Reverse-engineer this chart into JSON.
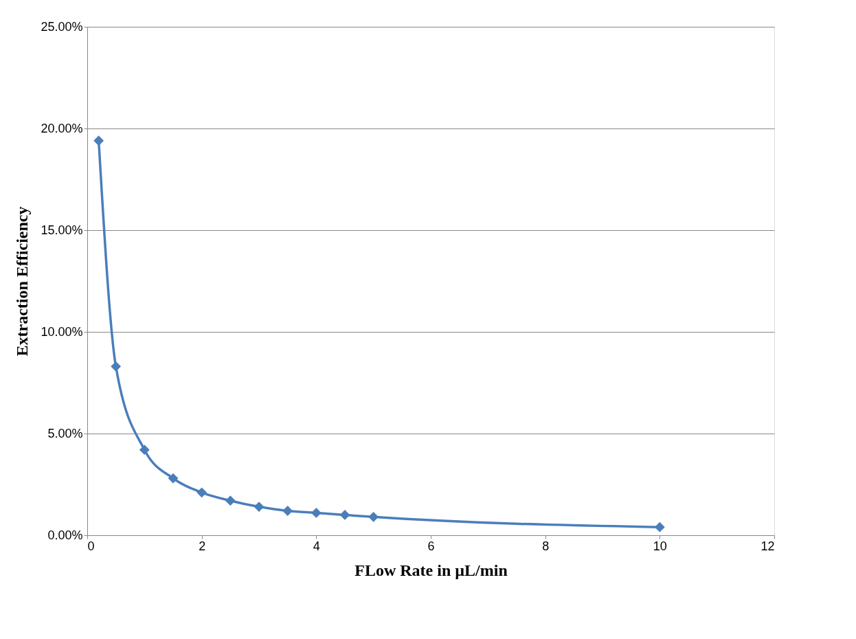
{
  "chart_data": {
    "type": "line",
    "xlabel": "FLow Rate in µL/min",
    "ylabel": "Extraction Efficiency",
    "x": [
      0.2,
      0.5,
      1,
      1.5,
      2,
      2.5,
      3,
      3.5,
      4,
      4.5,
      5,
      10
    ],
    "series": [
      {
        "color": "#4a7ebb",
        "values": [
          19.4,
          8.3,
          4.2,
          2.8,
          2.1,
          1.7,
          1.4,
          1.2,
          1.1,
          1.0,
          0.9,
          0.4
        ]
      }
    ],
    "xlim": [
      0,
      12
    ],
    "xticks": [
      0,
      2,
      4,
      6,
      8,
      10,
      12
    ],
    "ylim": [
      0,
      25
    ],
    "yticks": [
      {
        "value": 0,
        "label": "0.00%"
      },
      {
        "value": 5,
        "label": "5.00%"
      },
      {
        "value": 10,
        "label": "10.00%"
      },
      {
        "value": 15,
        "label": "15.00%"
      },
      {
        "value": 20,
        "label": "20.00%"
      },
      {
        "value": 25,
        "label": "25.00%"
      }
    ],
    "grid": "y",
    "marker": "diamond",
    "line_style": "solid"
  }
}
